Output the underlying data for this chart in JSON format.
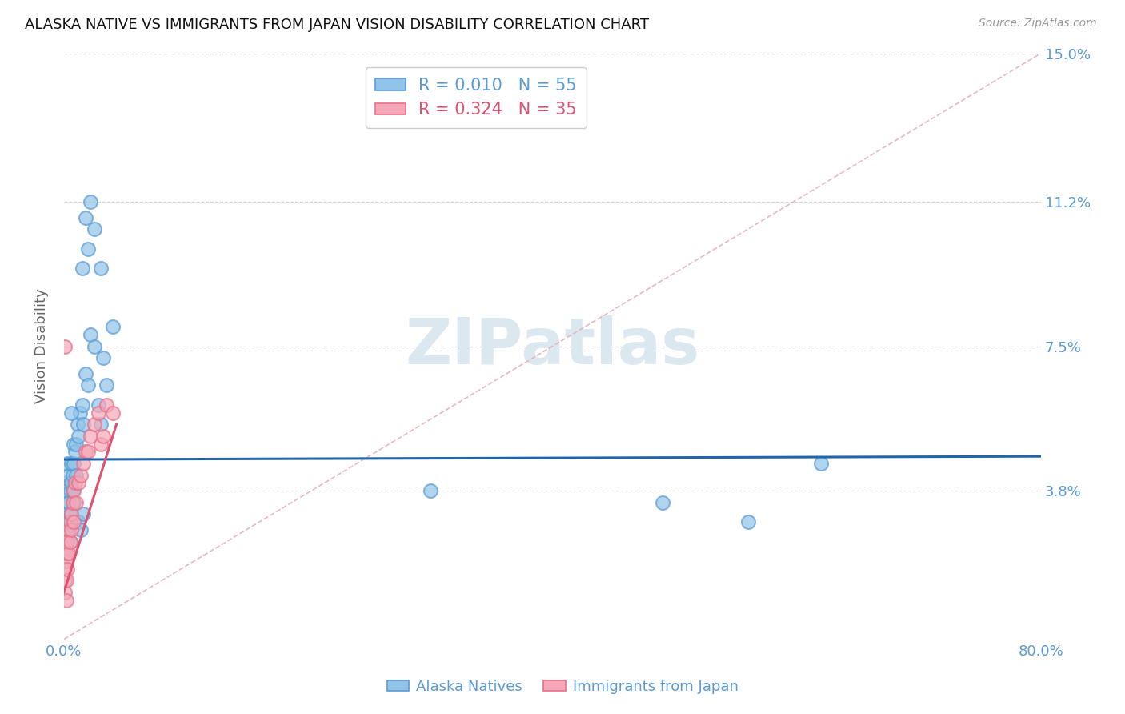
{
  "title": "ALASKA NATIVE VS IMMIGRANTS FROM JAPAN VISION DISABILITY CORRELATION CHART",
  "source": "Source: ZipAtlas.com",
  "ylabel": "Vision Disability",
  "xlim": [
    0.0,
    0.8
  ],
  "ylim": [
    0.0,
    0.15
  ],
  "yticks_right": [
    0.038,
    0.075,
    0.112,
    0.15
  ],
  "ytick_right_labels": [
    "3.8%",
    "7.5%",
    "11.2%",
    "15.0%"
  ],
  "blue_color": "#90c4e8",
  "pink_color": "#f4a8b8",
  "blue_edge_color": "#5b9bd5",
  "pink_edge_color": "#e8708a",
  "blue_line_color": "#2166ac",
  "pink_line_color": "#e05070",
  "diag_color": "#e8b0b8",
  "grid_color": "#cccccc",
  "watermark": "ZIPatlas",
  "watermark_color": "#dce8f0",
  "legend_r1": "R = 0.010",
  "legend_n1": "N = 55",
  "legend_r2": "R = 0.324",
  "legend_n2": "N = 35",
  "blue_scatter_x": [
    0.001,
    0.001,
    0.001,
    0.002,
    0.002,
    0.002,
    0.002,
    0.003,
    0.003,
    0.003,
    0.003,
    0.004,
    0.004,
    0.004,
    0.005,
    0.005,
    0.005,
    0.006,
    0.006,
    0.007,
    0.007,
    0.008,
    0.008,
    0.009,
    0.01,
    0.01,
    0.011,
    0.012,
    0.013,
    0.015,
    0.016,
    0.018,
    0.02,
    0.022,
    0.025,
    0.028,
    0.03,
    0.032,
    0.035,
    0.04,
    0.015,
    0.02,
    0.025,
    0.03,
    0.018,
    0.022,
    0.3,
    0.49,
    0.56,
    0.62,
    0.012,
    0.014,
    0.016,
    0.008,
    0.006
  ],
  "blue_scatter_y": [
    0.03,
    0.025,
    0.022,
    0.035,
    0.028,
    0.04,
    0.02,
    0.032,
    0.038,
    0.045,
    0.028,
    0.035,
    0.042,
    0.03,
    0.038,
    0.025,
    0.032,
    0.04,
    0.045,
    0.038,
    0.042,
    0.05,
    0.045,
    0.048,
    0.042,
    0.05,
    0.055,
    0.052,
    0.058,
    0.06,
    0.055,
    0.068,
    0.065,
    0.078,
    0.075,
    0.06,
    0.055,
    0.072,
    0.065,
    0.08,
    0.095,
    0.1,
    0.105,
    0.095,
    0.108,
    0.112,
    0.038,
    0.035,
    0.03,
    0.045,
    0.03,
    0.028,
    0.032,
    0.035,
    0.058
  ],
  "pink_scatter_x": [
    0.001,
    0.001,
    0.001,
    0.001,
    0.002,
    0.002,
    0.002,
    0.002,
    0.003,
    0.003,
    0.003,
    0.004,
    0.004,
    0.005,
    0.005,
    0.006,
    0.006,
    0.007,
    0.008,
    0.008,
    0.009,
    0.01,
    0.012,
    0.014,
    0.016,
    0.018,
    0.02,
    0.022,
    0.025,
    0.028,
    0.03,
    0.032,
    0.035,
    0.04,
    0.001
  ],
  "pink_scatter_y": [
    0.012,
    0.018,
    0.022,
    0.015,
    0.02,
    0.025,
    0.015,
    0.01,
    0.018,
    0.022,
    0.025,
    0.028,
    0.022,
    0.025,
    0.03,
    0.028,
    0.032,
    0.035,
    0.038,
    0.03,
    0.04,
    0.035,
    0.04,
    0.042,
    0.045,
    0.048,
    0.048,
    0.052,
    0.055,
    0.058,
    0.05,
    0.052,
    0.06,
    0.058,
    0.075
  ],
  "blue_line_y_intercept": 0.046,
  "blue_line_slope": 0.001,
  "pink_line_x_start": 0.0,
  "pink_line_x_end": 0.043,
  "pink_line_y_start": 0.012,
  "pink_line_y_end": 0.055
}
